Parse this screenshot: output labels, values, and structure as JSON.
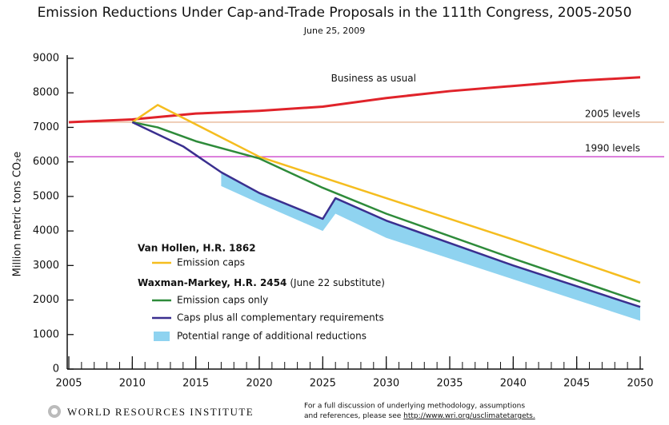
{
  "chart_data": {
    "type": "line",
    "title": "Emission Reductions Under Cap-and-Trade Proposals in the 111th Congress, 2005-2050",
    "subtitle": "June 25, 2009",
    "y_label": "Million metric tons CO₂e",
    "xlim": [
      2005,
      2050
    ],
    "xticks": [
      2005,
      2010,
      2015,
      2020,
      2025,
      2030,
      2035,
      2040,
      2045,
      2050
    ],
    "ylim": [
      0,
      9000
    ],
    "yticks": [
      0,
      1000,
      2000,
      3000,
      4000,
      5000,
      6000,
      7000,
      8000,
      9000
    ],
    "reference_lines": [
      {
        "label": "2005 levels",
        "value": 7150,
        "color": "#e8b898"
      },
      {
        "label": "1990 levels",
        "value": 6150,
        "color": "#cc44cc"
      }
    ],
    "legend_groups": [
      {
        "name": "Van Hollen, H.R. 1862"
      },
      {
        "name": "Waxman-Markey, H.R. 2454",
        "note": "(June 22 substitute)"
      }
    ],
    "series": [
      {
        "name": "Business as usual",
        "color": "#e0232a",
        "x": [
          2005,
          2010,
          2015,
          2020,
          2025,
          2030,
          2035,
          2040,
          2045,
          2050
        ],
        "values": [
          7150,
          7230,
          7400,
          7480,
          7600,
          7850,
          8050,
          8200,
          8350,
          8450
        ]
      },
      {
        "name": "Emission caps",
        "color": "#f5bd1f",
        "x": [
          2010,
          2012,
          2020,
          2030,
          2040,
          2050
        ],
        "values": [
          7150,
          7650,
          6150,
          4950,
          3750,
          2500
        ]
      },
      {
        "name": "Emission caps only",
        "color": "#2e8b3a",
        "x": [
          2010,
          2012,
          2015,
          2020,
          2025,
          2030,
          2040,
          2050
        ],
        "values": [
          7150,
          7000,
          6600,
          6100,
          5250,
          4500,
          3200,
          1950
        ]
      },
      {
        "name": "Caps plus all complementary requirements",
        "color": "#3a2f8f",
        "x": [
          2010,
          2012,
          2014,
          2017,
          2020,
          2025,
          2026,
          2030,
          2040,
          2050
        ],
        "values": [
          7150,
          6800,
          6450,
          5700,
          5100,
          4350,
          4950,
          4300,
          3000,
          1800
        ]
      },
      {
        "name": "Potential range of additional reductions",
        "color": "#8fd3f0",
        "x": [
          2017,
          2020,
          2025,
          2026,
          2030,
          2040,
          2050
        ],
        "high": [
          5700,
          5100,
          4350,
          4950,
          4300,
          3000,
          1800
        ],
        "low": [
          5300,
          4800,
          4000,
          4500,
          3800,
          2600,
          1400
        ]
      }
    ],
    "footer": {
      "org": "WORLD RESOURCES INSTITUTE",
      "note": [
        "For a full discussion of underlying methodology, assumptions",
        "and references, please see"
      ],
      "link": "http://www.wri.org/usclimatetargets."
    }
  }
}
